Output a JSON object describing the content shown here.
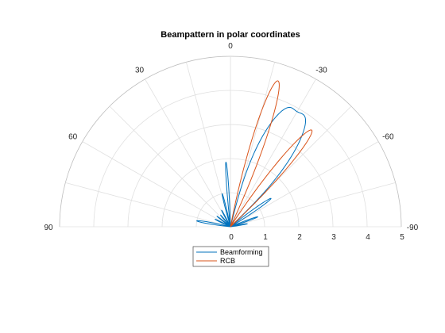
{
  "chart_data": {
    "type": "polar",
    "title": "Beampattern in polar coordinates",
    "theta_ticks": [
      "90",
      "60",
      "30",
      "0",
      "-30",
      "-60",
      "-90"
    ],
    "theta_tick_values": [
      90,
      60,
      30,
      0,
      -30,
      -60,
      -90
    ],
    "r_ticks": [
      "0",
      "1",
      "2",
      "3",
      "4",
      "5"
    ],
    "r_tick_values": [
      0,
      1,
      2,
      3,
      4,
      5
    ],
    "rlim": [
      0,
      5
    ],
    "theta_range": [
      -90,
      90
    ],
    "grid": true,
    "legend_position": "bottom-center",
    "series": [
      {
        "name": "Beamforming",
        "color": "#0072BD",
        "lobes": [
          {
            "center_deg": -30,
            "peak": 4.2,
            "half_width_deg": 16,
            "inner_dip_deg": -30,
            "inner_dip": 3.9
          },
          {
            "center_deg": -55,
            "peak": 1.45,
            "half_width_deg": 4
          },
          {
            "center_deg": -70,
            "peak": 0.85,
            "half_width_deg": 3
          },
          {
            "center_deg": -80,
            "peak": 0.5,
            "half_width_deg": 2.5
          },
          {
            "center_deg": 4,
            "peak": 1.9,
            "half_width_deg": 2.5
          },
          {
            "center_deg": 14,
            "peak": 1.0,
            "half_width_deg": 2.5
          },
          {
            "center_deg": 28,
            "peak": 0.55,
            "half_width_deg": 2.5
          },
          {
            "center_deg": 40,
            "peak": 0.45,
            "half_width_deg": 2.5
          },
          {
            "center_deg": 52,
            "peak": 0.5,
            "half_width_deg": 2.5
          },
          {
            "center_deg": 64,
            "peak": 0.5,
            "half_width_deg": 2.5
          },
          {
            "center_deg": 80,
            "peak": 1.0,
            "half_width_deg": 4
          }
        ]
      },
      {
        "name": "RCB",
        "color": "#D95319",
        "lobes": [
          {
            "center_deg": -18,
            "peak": 4.5,
            "half_width_deg": 7
          },
          {
            "center_deg": -40,
            "peak": 3.7,
            "half_width_deg": 7
          }
        ]
      }
    ],
    "legend": [
      "Beamforming",
      "RCB"
    ]
  }
}
